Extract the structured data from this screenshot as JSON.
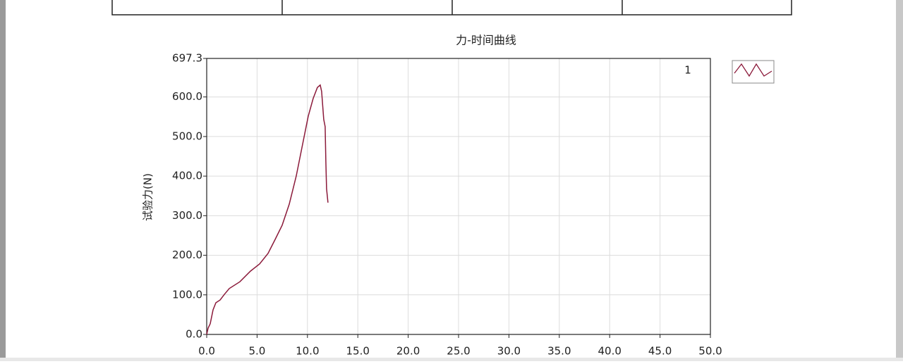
{
  "chart_data": {
    "type": "line",
    "title": "力-时间曲线",
    "y_label": "试验力(N)",
    "x": [
      0,
      0.14,
      0.35,
      0.63,
      0.91,
      1.33,
      1.75,
      2.24,
      3.29,
      4.34,
      5.25,
      6.09,
      6.79,
      7.49,
      8.19,
      8.89,
      9.59,
      10.08,
      10.57,
      10.99,
      11.27,
      11.41,
      11.62,
      11.76,
      11.83,
      11.9,
      12.04
    ],
    "series": [
      {
        "name": "1",
        "color": "#8b1a3a",
        "values": [
          0,
          16,
          27,
          62,
          80,
          87,
          101,
          116,
          133,
          160,
          178,
          205,
          240,
          276,
          329,
          400,
          489,
          551,
          596,
          624,
          630,
          614,
          543,
          525,
          436,
          368,
          333
        ]
      }
    ],
    "xlim": [
      0,
      50
    ],
    "xticks": [
      {
        "value": 0,
        "label": "0.0"
      },
      {
        "value": 5,
        "label": "5.0"
      },
      {
        "value": 10,
        "label": "10.0"
      },
      {
        "value": 15,
        "label": "15.0"
      },
      {
        "value": 20,
        "label": "20.0"
      },
      {
        "value": 25,
        "label": "25.0"
      },
      {
        "value": 30,
        "label": "30.0"
      },
      {
        "value": 35,
        "label": "35.0"
      },
      {
        "value": 40,
        "label": "40.0"
      },
      {
        "value": 45,
        "label": "45.0"
      },
      {
        "value": 50,
        "label": "50.0"
      }
    ],
    "ylim": [
      0,
      697.3
    ],
    "yticks": [
      {
        "value": 0,
        "label": "0.0"
      },
      {
        "value": 100,
        "label": "100.0"
      },
      {
        "value": 200,
        "label": "200.0"
      },
      {
        "value": 300,
        "label": "300.0"
      },
      {
        "value": 400,
        "label": "400.0"
      },
      {
        "value": 500,
        "label": "500.0"
      },
      {
        "value": 600,
        "label": "600.0"
      },
      697.3
    ],
    "grid": true
  }
}
